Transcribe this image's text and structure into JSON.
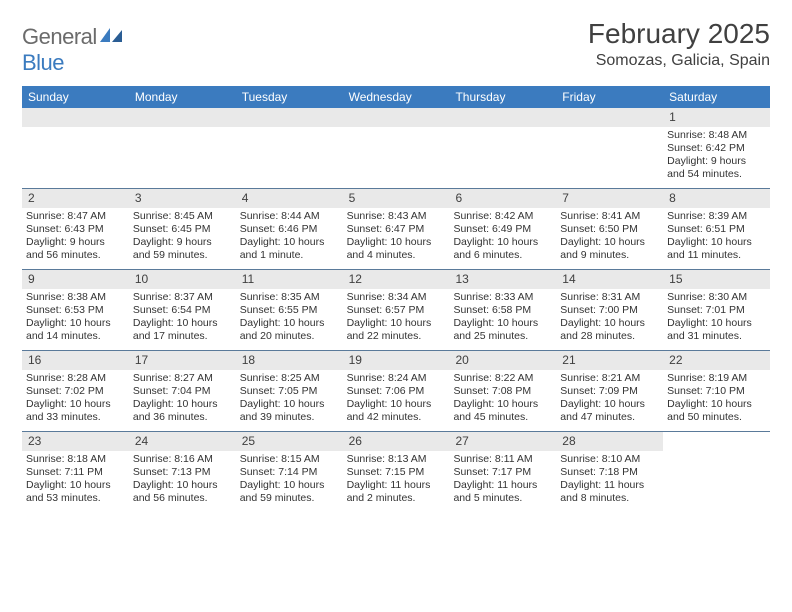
{
  "logo": {
    "part1": "General",
    "part2": "Blue"
  },
  "title": "February 2025",
  "location": "Somozas, Galicia, Spain",
  "colors": {
    "header_bar": "#3b7bbf",
    "daynum_bg": "#e9e9e9",
    "week_border": "#5a7a9a",
    "text": "#333333",
    "title_text": "#404040"
  },
  "daysOfWeek": [
    "Sunday",
    "Monday",
    "Tuesday",
    "Wednesday",
    "Thursday",
    "Friday",
    "Saturday"
  ],
  "weeks": [
    [
      {
        "n": "",
        "empty": true
      },
      {
        "n": "",
        "empty": true
      },
      {
        "n": "",
        "empty": true
      },
      {
        "n": "",
        "empty": true
      },
      {
        "n": "",
        "empty": true
      },
      {
        "n": "",
        "empty": true
      },
      {
        "n": "1",
        "sunrise": "Sunrise: 8:48 AM",
        "sunset": "Sunset: 6:42 PM",
        "daylight": "Daylight: 9 hours and 54 minutes."
      }
    ],
    [
      {
        "n": "2",
        "sunrise": "Sunrise: 8:47 AM",
        "sunset": "Sunset: 6:43 PM",
        "daylight": "Daylight: 9 hours and 56 minutes."
      },
      {
        "n": "3",
        "sunrise": "Sunrise: 8:45 AM",
        "sunset": "Sunset: 6:45 PM",
        "daylight": "Daylight: 9 hours and 59 minutes."
      },
      {
        "n": "4",
        "sunrise": "Sunrise: 8:44 AM",
        "sunset": "Sunset: 6:46 PM",
        "daylight": "Daylight: 10 hours and 1 minute."
      },
      {
        "n": "5",
        "sunrise": "Sunrise: 8:43 AM",
        "sunset": "Sunset: 6:47 PM",
        "daylight": "Daylight: 10 hours and 4 minutes."
      },
      {
        "n": "6",
        "sunrise": "Sunrise: 8:42 AM",
        "sunset": "Sunset: 6:49 PM",
        "daylight": "Daylight: 10 hours and 6 minutes."
      },
      {
        "n": "7",
        "sunrise": "Sunrise: 8:41 AM",
        "sunset": "Sunset: 6:50 PM",
        "daylight": "Daylight: 10 hours and 9 minutes."
      },
      {
        "n": "8",
        "sunrise": "Sunrise: 8:39 AM",
        "sunset": "Sunset: 6:51 PM",
        "daylight": "Daylight: 10 hours and 11 minutes."
      }
    ],
    [
      {
        "n": "9",
        "sunrise": "Sunrise: 8:38 AM",
        "sunset": "Sunset: 6:53 PM",
        "daylight": "Daylight: 10 hours and 14 minutes."
      },
      {
        "n": "10",
        "sunrise": "Sunrise: 8:37 AM",
        "sunset": "Sunset: 6:54 PM",
        "daylight": "Daylight: 10 hours and 17 minutes."
      },
      {
        "n": "11",
        "sunrise": "Sunrise: 8:35 AM",
        "sunset": "Sunset: 6:55 PM",
        "daylight": "Daylight: 10 hours and 20 minutes."
      },
      {
        "n": "12",
        "sunrise": "Sunrise: 8:34 AM",
        "sunset": "Sunset: 6:57 PM",
        "daylight": "Daylight: 10 hours and 22 minutes."
      },
      {
        "n": "13",
        "sunrise": "Sunrise: 8:33 AM",
        "sunset": "Sunset: 6:58 PM",
        "daylight": "Daylight: 10 hours and 25 minutes."
      },
      {
        "n": "14",
        "sunrise": "Sunrise: 8:31 AM",
        "sunset": "Sunset: 7:00 PM",
        "daylight": "Daylight: 10 hours and 28 minutes."
      },
      {
        "n": "15",
        "sunrise": "Sunrise: 8:30 AM",
        "sunset": "Sunset: 7:01 PM",
        "daylight": "Daylight: 10 hours and 31 minutes."
      }
    ],
    [
      {
        "n": "16",
        "sunrise": "Sunrise: 8:28 AM",
        "sunset": "Sunset: 7:02 PM",
        "daylight": "Daylight: 10 hours and 33 minutes."
      },
      {
        "n": "17",
        "sunrise": "Sunrise: 8:27 AM",
        "sunset": "Sunset: 7:04 PM",
        "daylight": "Daylight: 10 hours and 36 minutes."
      },
      {
        "n": "18",
        "sunrise": "Sunrise: 8:25 AM",
        "sunset": "Sunset: 7:05 PM",
        "daylight": "Daylight: 10 hours and 39 minutes."
      },
      {
        "n": "19",
        "sunrise": "Sunrise: 8:24 AM",
        "sunset": "Sunset: 7:06 PM",
        "daylight": "Daylight: 10 hours and 42 minutes."
      },
      {
        "n": "20",
        "sunrise": "Sunrise: 8:22 AM",
        "sunset": "Sunset: 7:08 PM",
        "daylight": "Daylight: 10 hours and 45 minutes."
      },
      {
        "n": "21",
        "sunrise": "Sunrise: 8:21 AM",
        "sunset": "Sunset: 7:09 PM",
        "daylight": "Daylight: 10 hours and 47 minutes."
      },
      {
        "n": "22",
        "sunrise": "Sunrise: 8:19 AM",
        "sunset": "Sunset: 7:10 PM",
        "daylight": "Daylight: 10 hours and 50 minutes."
      }
    ],
    [
      {
        "n": "23",
        "sunrise": "Sunrise: 8:18 AM",
        "sunset": "Sunset: 7:11 PM",
        "daylight": "Daylight: 10 hours and 53 minutes."
      },
      {
        "n": "24",
        "sunrise": "Sunrise: 8:16 AM",
        "sunset": "Sunset: 7:13 PM",
        "daylight": "Daylight: 10 hours and 56 minutes."
      },
      {
        "n": "25",
        "sunrise": "Sunrise: 8:15 AM",
        "sunset": "Sunset: 7:14 PM",
        "daylight": "Daylight: 10 hours and 59 minutes."
      },
      {
        "n": "26",
        "sunrise": "Sunrise: 8:13 AM",
        "sunset": "Sunset: 7:15 PM",
        "daylight": "Daylight: 11 hours and 2 minutes."
      },
      {
        "n": "27",
        "sunrise": "Sunrise: 8:11 AM",
        "sunset": "Sunset: 7:17 PM",
        "daylight": "Daylight: 11 hours and 5 minutes."
      },
      {
        "n": "28",
        "sunrise": "Sunrise: 8:10 AM",
        "sunset": "Sunset: 7:18 PM",
        "daylight": "Daylight: 11 hours and 8 minutes."
      },
      {
        "n": "",
        "empty": true,
        "noBar": true
      }
    ]
  ]
}
